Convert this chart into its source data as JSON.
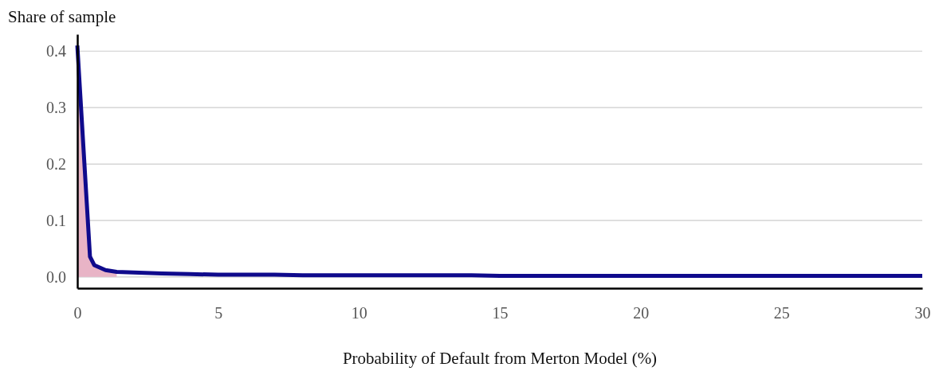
{
  "chart_data": {
    "type": "line",
    "ylabel": "Share of sample",
    "xlabel": "Probability of Default from Merton Model (%)",
    "xlim": [
      0,
      30
    ],
    "xticks": [
      0,
      5,
      10,
      15,
      20,
      25,
      30
    ],
    "ylim": [
      -0.02,
      0.43
    ],
    "yticks": [
      {
        "value": 0,
        "label": "0.0"
      },
      0.1,
      0.2,
      0.3,
      0.4
    ],
    "grid": "y",
    "marker": "none",
    "line_style": "solid",
    "series": [
      {
        "type": "area",
        "color": "#e8b4c6",
        "x": [
          0,
          0.45,
          0.6,
          1,
          1.4
        ],
        "values": [
          0.41,
          0.036,
          0.021,
          0.012,
          0.009
        ]
      },
      {
        "color": "#0f0a8c",
        "x": [
          0,
          0.45,
          0.6,
          1,
          1.4,
          2,
          3,
          4,
          5,
          6,
          7,
          8,
          9,
          10,
          11,
          12,
          13,
          14,
          15,
          16,
          17,
          18,
          19,
          20,
          21,
          22,
          23,
          24,
          25,
          26,
          27,
          28,
          29,
          30
        ],
        "values": [
          0.41,
          0.036,
          0.021,
          0.012,
          0.009,
          0.008,
          0.006,
          0.005,
          0.004,
          0.004,
          0.004,
          0.003,
          0.003,
          0.003,
          0.003,
          0.003,
          0.003,
          0.003,
          0.002,
          0.002,
          0.002,
          0.002,
          0.002,
          0.002,
          0.002,
          0.002,
          0.002,
          0.002,
          0.002,
          0.002,
          0.002,
          0.002,
          0.002,
          0.002
        ]
      }
    ]
  }
}
